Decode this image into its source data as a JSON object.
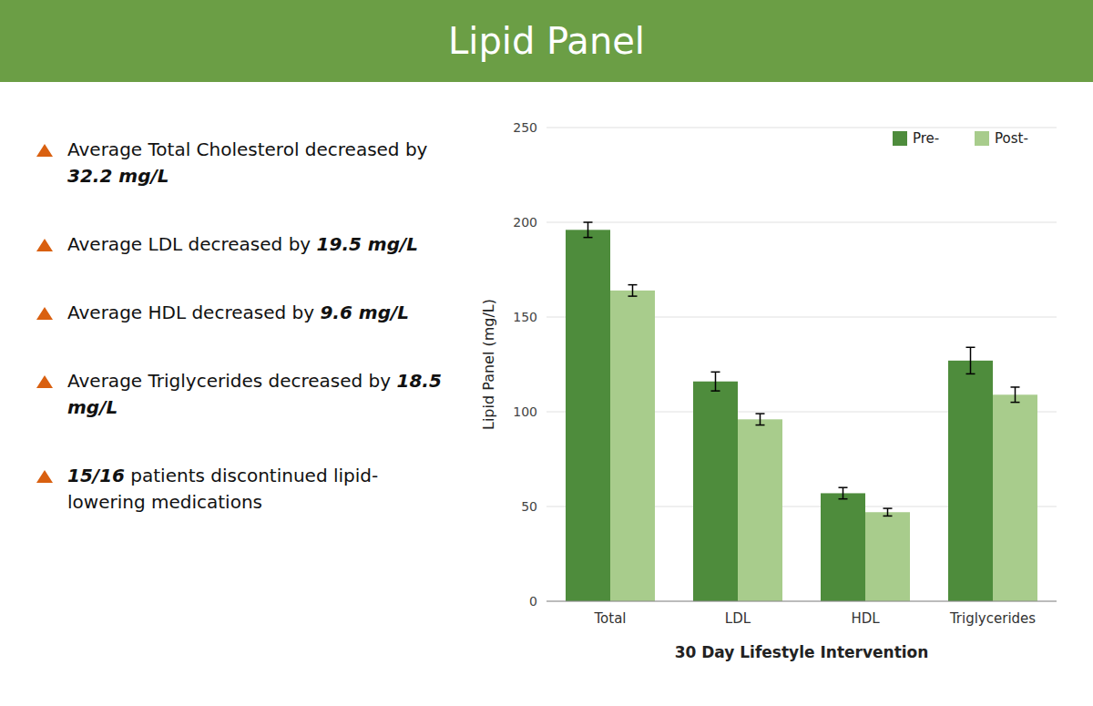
{
  "chart_data": {
    "type": "bar",
    "title": "Lipid Panel",
    "categories": [
      "Total",
      "LDL",
      "HDL",
      "Triglycerides"
    ],
    "series": [
      {
        "name": "Pre-",
        "color": "#4e8c3c",
        "values": [
          196,
          116,
          57,
          127
        ],
        "errors": [
          4,
          5,
          3,
          7
        ]
      },
      {
        "name": "Post-",
        "color": "#a8cc8c",
        "values": [
          164,
          96,
          47,
          109
        ],
        "errors": [
          3,
          3,
          2,
          4
        ]
      }
    ],
    "xlabel": "30 Day Lifestyle Intervention",
    "ylabel": "Lipid Panel (mg/L)",
    "ylim": [
      0,
      250
    ],
    "yticks": [
      0,
      50,
      100,
      150,
      200,
      250
    ],
    "grid": true,
    "legend": "upper right",
    "annotations": [
      [
        {
          "text": "Average Total Cholesterol decreased by "
        },
        {
          "text": "32.2 mg/L",
          "bold": true
        }
      ],
      [
        {
          "text": "Average LDL decreased by "
        },
        {
          "text": "19.5 mg/L",
          "bold": true
        }
      ],
      [
        {
          "text": "Average HDL decreased by "
        },
        {
          "text": "9.6 mg/L",
          "bold": true
        }
      ],
      [
        {
          "text": "Average Triglycerides decreased by "
        },
        {
          "text": "18.5 mg/L",
          "bold": true
        }
      ],
      [
        {
          "text": "15/16",
          "bold": true
        },
        {
          "text": " patients discontinued lipid-lowering medications"
        }
      ]
    ]
  }
}
